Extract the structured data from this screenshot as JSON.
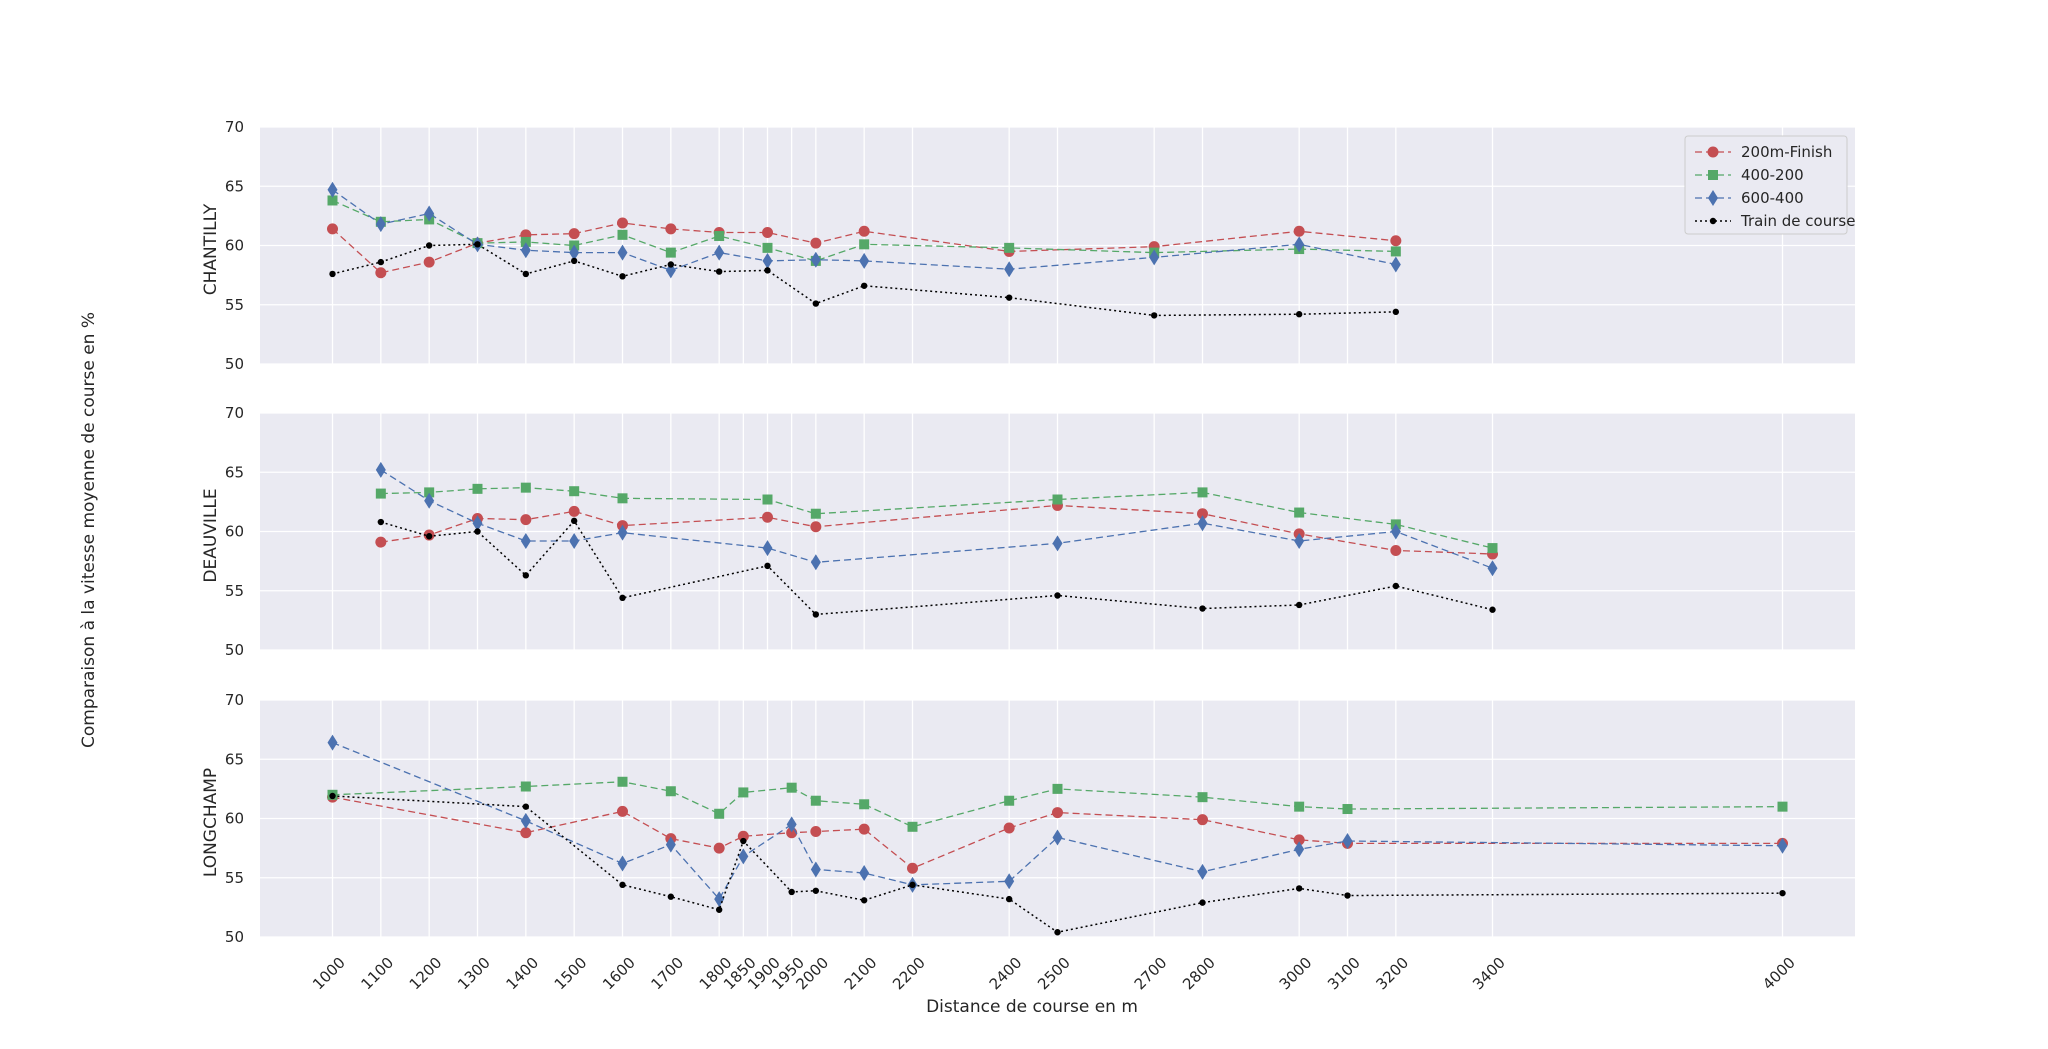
{
  "chart_data": {
    "type": "line",
    "ylabel": "Comparaison à la vitesse moyenne de course en %",
    "xlabel": "Distance de course en m",
    "x_ticks": [
      1000,
      1100,
      1200,
      1300,
      1400,
      1500,
      1600,
      1700,
      1800,
      1850,
      1900,
      1950,
      2000,
      2100,
      2200,
      2400,
      2500,
      2700,
      2800,
      3000,
      3100,
      3200,
      3400,
      4000
    ],
    "ylim": [
      50,
      70
    ],
    "y_ticks": [
      50,
      55,
      60,
      65,
      70
    ],
    "grid": true,
    "legend_position": "top-right",
    "colors": {
      "200m-Finish": "#c44e52",
      "400-200": "#55a868",
      "600-400": "#4c72b0",
      "Train de course": "#000000",
      "panel_bg": "#eaeaf2"
    },
    "legend": [
      "200m-Finish",
      "400-200",
      "600-400",
      "Train de course"
    ],
    "panels": [
      {
        "title": "CHANTILLY",
        "series": [
          {
            "name": "200m-Finish",
            "points": [
              [
                1000,
                61.4
              ],
              [
                1100,
                57.7
              ],
              [
                1200,
                58.6
              ],
              [
                1300,
                60.2
              ],
              [
                1400,
                60.9
              ],
              [
                1500,
                61.0
              ],
              [
                1600,
                61.9
              ],
              [
                1700,
                61.4
              ],
              [
                1800,
                61.1
              ],
              [
                1900,
                61.1
              ],
              [
                2000,
                60.2
              ],
              [
                2100,
                61.2
              ],
              [
                2400,
                59.5
              ],
              [
                2700,
                59.9
              ],
              [
                3000,
                61.2
              ],
              [
                3200,
                60.4
              ]
            ]
          },
          {
            "name": "400-200",
            "points": [
              [
                1000,
                63.8
              ],
              [
                1100,
                62.0
              ],
              [
                1200,
                62.2
              ],
              [
                1300,
                60.2
              ],
              [
                1400,
                60.3
              ],
              [
                1500,
                60.0
              ],
              [
                1600,
                60.9
              ],
              [
                1700,
                59.4
              ],
              [
                1800,
                60.8
              ],
              [
                1900,
                59.8
              ],
              [
                2000,
                58.7
              ],
              [
                2100,
                60.1
              ],
              [
                2400,
                59.8
              ],
              [
                2700,
                59.4
              ],
              [
                3000,
                59.7
              ],
              [
                3200,
                59.5
              ]
            ]
          },
          {
            "name": "600-400",
            "points": [
              [
                1000,
                64.7
              ],
              [
                1100,
                61.8
              ],
              [
                1200,
                62.7
              ],
              [
                1300,
                60.1
              ],
              [
                1400,
                59.6
              ],
              [
                1500,
                59.4
              ],
              [
                1600,
                59.4
              ],
              [
                1700,
                57.9
              ],
              [
                1800,
                59.4
              ],
              [
                1900,
                58.7
              ],
              [
                2000,
                58.8
              ],
              [
                2100,
                58.7
              ],
              [
                2400,
                58.0
              ],
              [
                2700,
                59.0
              ],
              [
                3000,
                60.1
              ],
              [
                3200,
                58.4
              ]
            ]
          },
          {
            "name": "Train de course",
            "points": [
              [
                1000,
                57.6
              ],
              [
                1100,
                58.6
              ],
              [
                1200,
                60.0
              ],
              [
                1300,
                60.1
              ],
              [
                1400,
                57.6
              ],
              [
                1500,
                58.7
              ],
              [
                1600,
                57.4
              ],
              [
                1700,
                58.4
              ],
              [
                1800,
                57.8
              ],
              [
                1900,
                57.9
              ],
              [
                2000,
                55.1
              ],
              [
                2100,
                56.6
              ],
              [
                2400,
                55.6
              ],
              [
                2700,
                54.1
              ],
              [
                3000,
                54.2
              ],
              [
                3200,
                54.4
              ]
            ]
          }
        ]
      },
      {
        "title": "DEAUVILLE",
        "series": [
          {
            "name": "200m-Finish",
            "points": [
              [
                1100,
                59.1
              ],
              [
                1200,
                59.7
              ],
              [
                1300,
                61.1
              ],
              [
                1400,
                61.0
              ],
              [
                1500,
                61.7
              ],
              [
                1600,
                60.5
              ],
              [
                1900,
                61.2
              ],
              [
                2000,
                60.4
              ],
              [
                2500,
                62.2
              ],
              [
                2800,
                61.5
              ],
              [
                3000,
                59.8
              ],
              [
                3200,
                58.4
              ],
              [
                3400,
                58.1
              ]
            ]
          },
          {
            "name": "400-200",
            "points": [
              [
                1100,
                63.2
              ],
              [
                1200,
                63.3
              ],
              [
                1300,
                63.6
              ],
              [
                1400,
                63.7
              ],
              [
                1500,
                63.4
              ],
              [
                1600,
                62.8
              ],
              [
                1900,
                62.7
              ],
              [
                2000,
                61.5
              ],
              [
                2500,
                62.7
              ],
              [
                2800,
                63.3
              ],
              [
                3000,
                61.6
              ],
              [
                3200,
                60.6
              ],
              [
                3400,
                58.6
              ]
            ]
          },
          {
            "name": "600-400",
            "points": [
              [
                1100,
                65.2
              ],
              [
                1200,
                62.6
              ],
              [
                1300,
                60.7
              ],
              [
                1400,
                59.2
              ],
              [
                1500,
                59.2
              ],
              [
                1600,
                59.9
              ],
              [
                1900,
                58.6
              ],
              [
                2000,
                57.4
              ],
              [
                2500,
                59.0
              ],
              [
                2800,
                60.7
              ],
              [
                3000,
                59.2
              ],
              [
                3200,
                60.0
              ],
              [
                3400,
                56.9
              ]
            ]
          },
          {
            "name": "Train de course",
            "points": [
              [
                1100,
                60.8
              ],
              [
                1200,
                59.6
              ],
              [
                1300,
                60.0
              ],
              [
                1400,
                56.3
              ],
              [
                1500,
                60.9
              ],
              [
                1600,
                54.4
              ],
              [
                1900,
                57.1
              ],
              [
                2000,
                53.0
              ],
              [
                2500,
                54.6
              ],
              [
                2800,
                53.5
              ],
              [
                3000,
                53.8
              ],
              [
                3200,
                55.4
              ],
              [
                3400,
                53.4
              ]
            ]
          }
        ]
      },
      {
        "title": "LONGCHAMP",
        "series": [
          {
            "name": "200m-Finish",
            "points": [
              [
                1000,
                61.8
              ],
              [
                1400,
                58.8
              ],
              [
                1600,
                60.6
              ],
              [
                1700,
                58.3
              ],
              [
                1800,
                57.5
              ],
              [
                1850,
                58.5
              ],
              [
                1950,
                58.8
              ],
              [
                2000,
                58.9
              ],
              [
                2100,
                59.1
              ],
              [
                2200,
                55.8
              ],
              [
                2400,
                59.2
              ],
              [
                2500,
                60.5
              ],
              [
                2800,
                59.9
              ],
              [
                3000,
                58.2
              ],
              [
                3100,
                57.9
              ],
              [
                4000,
                57.9
              ]
            ]
          },
          {
            "name": "400-200",
            "points": [
              [
                1000,
                62.0
              ],
              [
                1400,
                62.7
              ],
              [
                1600,
                63.1
              ],
              [
                1700,
                62.3
              ],
              [
                1800,
                60.4
              ],
              [
                1850,
                62.2
              ],
              [
                1950,
                62.6
              ],
              [
                2000,
                61.5
              ],
              [
                2100,
                61.2
              ],
              [
                2200,
                59.3
              ],
              [
                2400,
                61.5
              ],
              [
                2500,
                62.5
              ],
              [
                2800,
                61.8
              ],
              [
                3000,
                61.0
              ],
              [
                3100,
                60.8
              ],
              [
                4000,
                61.0
              ]
            ]
          },
          {
            "name": "600-400",
            "points": [
              [
                1000,
                66.4
              ],
              [
                1400,
                59.8
              ],
              [
                1600,
                56.2
              ],
              [
                1700,
                57.8
              ],
              [
                1800,
                53.2
              ],
              [
                1850,
                56.8
              ],
              [
                1950,
                59.5
              ],
              [
                2000,
                55.7
              ],
              [
                2100,
                55.4
              ],
              [
                2200,
                54.4
              ],
              [
                2400,
                54.7
              ],
              [
                2500,
                58.4
              ],
              [
                2800,
                55.5
              ],
              [
                3000,
                57.4
              ],
              [
                3100,
                58.1
              ],
              [
                4000,
                57.7
              ]
            ]
          },
          {
            "name": "Train de course",
            "points": [
              [
                1000,
                61.9
              ],
              [
                1400,
                61.0
              ],
              [
                1600,
                54.4
              ],
              [
                1700,
                53.4
              ],
              [
                1800,
                52.3
              ],
              [
                1850,
                58.1
              ],
              [
                1950,
                53.8
              ],
              [
                2000,
                53.9
              ],
              [
                2100,
                53.1
              ],
              [
                2200,
                54.4
              ],
              [
                2400,
                53.2
              ],
              [
                2500,
                50.4
              ],
              [
                2800,
                52.9
              ],
              [
                3000,
                54.1
              ],
              [
                3100,
                53.5
              ],
              [
                4000,
                53.7
              ]
            ]
          }
        ]
      }
    ]
  }
}
